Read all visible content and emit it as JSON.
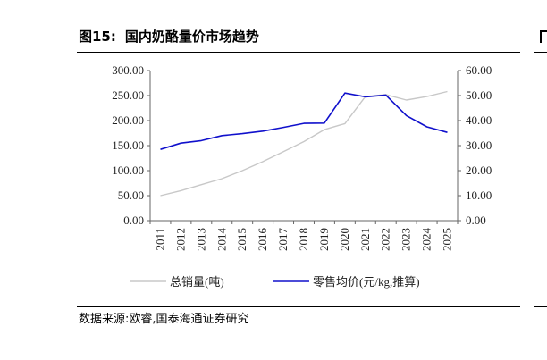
{
  "figure": {
    "number": "图15:",
    "title": "国内奶酪量价市场趋势",
    "source": "数据来源:欧睿,国泰海通证券研究"
  },
  "chart_data": {
    "type": "line",
    "categories": [
      "2011",
      "2012",
      "2013",
      "2014",
      "2015",
      "2016",
      "2017",
      "2018",
      "2019",
      "2020",
      "2021",
      "2022",
      "2023",
      "2024",
      "2025"
    ],
    "series": [
      {
        "name": "总销量(吨)",
        "axis": "left",
        "color": "#c8c8c8",
        "values": [
          50,
          60,
          72,
          84,
          100,
          118,
          138,
          158,
          182,
          194,
          248,
          252,
          241,
          248,
          258
        ]
      },
      {
        "name": "零售均价(元/kg,推算)",
        "axis": "right",
        "color": "#1010cc",
        "values": [
          28.5,
          31.0,
          32.0,
          34.0,
          34.8,
          35.8,
          37.3,
          38.9,
          39.0,
          51.0,
          49.5,
          50.2,
          42.0,
          37.5,
          35.3
        ]
      }
    ],
    "y_left": {
      "min": 0,
      "max": 300,
      "ticks": [
        "0.00",
        "50.00",
        "100.00",
        "150.00",
        "200.00",
        "250.00",
        "300.00"
      ]
    },
    "y_right": {
      "min": 0,
      "max": 60,
      "ticks": [
        "0.00",
        "10.00",
        "20.00",
        "30.00",
        "40.00",
        "50.00",
        "60.00"
      ]
    },
    "legend_position": "bottom",
    "grid": false
  }
}
